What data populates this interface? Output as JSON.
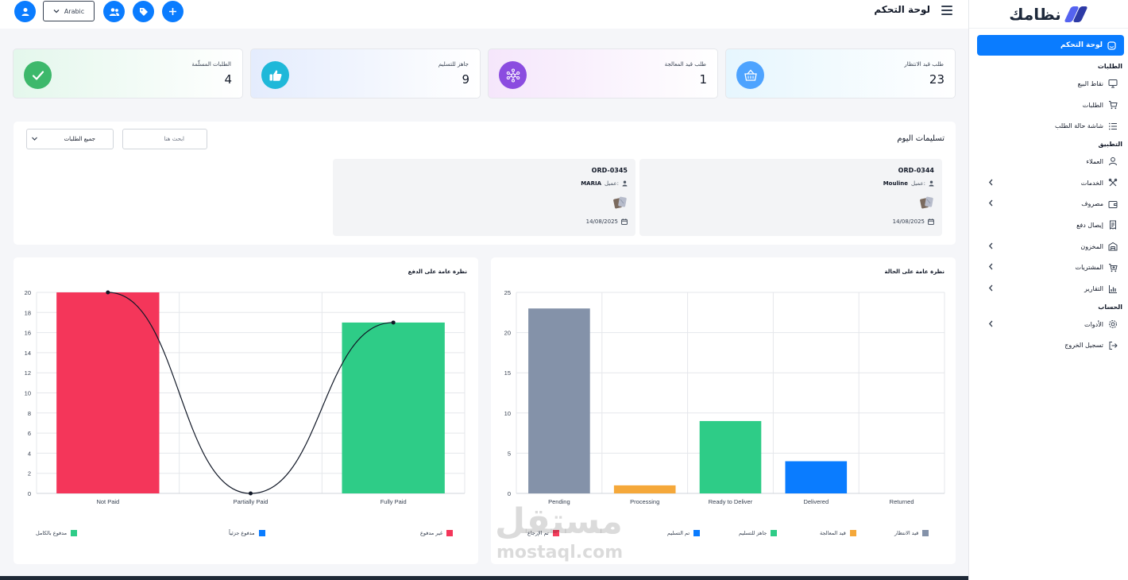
{
  "brand": {
    "name": "نظامك"
  },
  "topbar": {
    "title": "لوحة التحكم",
    "language": "Arabic"
  },
  "sidebar": {
    "active": "لوحة التحكم",
    "sections": [
      {
        "title": "الطلبات",
        "items": [
          {
            "label": "نقاط البيع",
            "icon": "monitor-icon",
            "expandable": false
          },
          {
            "label": "الطلبات",
            "icon": "cart-icon",
            "expandable": false
          },
          {
            "label": "شاشة حالة الطلب",
            "icon": "list-icon",
            "expandable": false
          }
        ]
      },
      {
        "title": "التطبيق",
        "items": [
          {
            "label": "العملاء",
            "icon": "user-icon",
            "expandable": false
          },
          {
            "label": "الخدمات",
            "icon": "tools-icon",
            "expandable": true
          },
          {
            "label": "مصروف",
            "icon": "wallet-icon",
            "expandable": true
          },
          {
            "label": "إيصال دفع",
            "icon": "receipt-icon",
            "expandable": false
          },
          {
            "label": "المخزون",
            "icon": "warehouse-icon",
            "expandable": true
          },
          {
            "label": "المشتريات",
            "icon": "cart-plus-icon",
            "expandable": true
          },
          {
            "label": "التقارير",
            "icon": "chart-icon",
            "expandable": true
          }
        ]
      },
      {
        "title": "الحساب",
        "items": [
          {
            "label": "الأدوات",
            "icon": "gear-icon",
            "expandable": true
          },
          {
            "label": "تسجيل الخروج",
            "icon": "logout-icon",
            "expandable": false
          }
        ]
      }
    ]
  },
  "stats": [
    {
      "label": "طلب قيد الانتظار",
      "value": "23",
      "icon": "basket-icon",
      "color": "#4da3ff"
    },
    {
      "label": "طلب قيد المعالجة",
      "value": "1",
      "icon": "network-icon",
      "color": "#8b4ce0"
    },
    {
      "label": "جاهز للتسليم",
      "value": "9",
      "icon": "thumbs-up-icon",
      "color": "#1fb8d9"
    },
    {
      "label": "الطلبات المسلّمة",
      "value": "4",
      "icon": "check-icon",
      "color": "#3db86b"
    }
  ],
  "deliveries": {
    "title": "تسليمات اليوم",
    "search_placeholder": "ابحث هنا",
    "filter_value": "جميع الطلبات",
    "client_label": "عميل:",
    "orders": [
      {
        "id": "ORD-0344",
        "client": "Mouline",
        "date": "14/08/2025"
      },
      {
        "id": "ORD-0345",
        "client": "MARIA",
        "date": "14/08/2025"
      }
    ]
  },
  "status_chart": {
    "title": "نظرة عامة على الحالة",
    "chart_data": {
      "type": "bar",
      "categories": [
        "Pending",
        "Processing",
        "Ready to Deliver",
        "Delivered",
        "Returned"
      ],
      "values": [
        23,
        1,
        9,
        4,
        0
      ],
      "colors": [
        "#8492a9",
        "#f5a83a",
        "#2ecc87",
        "#0a7cff",
        "#f43f5e"
      ],
      "ylim": [
        0,
        25
      ],
      "yticks": [
        0,
        5,
        10,
        15,
        20,
        25
      ],
      "legend": [
        "قيد الانتظار",
        "قيد المعالجة",
        "جاهز للتسليم",
        "تم التسليم",
        "تم الإرجاع"
      ],
      "legend_position": "bottom",
      "grid": true
    }
  },
  "payment_chart": {
    "title": "نظرة عامة على الدفع",
    "chart_data": {
      "type": "bar",
      "categories": [
        "Not Paid",
        "Partially Paid",
        "Fully Paid"
      ],
      "values": [
        20,
        0,
        17
      ],
      "colors": [
        "#f4365a",
        "#0a7cff",
        "#2ecc87"
      ],
      "ylim": [
        0,
        20
      ],
      "yticks": [
        0,
        2,
        4,
        6,
        8,
        10,
        12,
        14,
        16,
        18,
        20
      ],
      "line_overlay": [
        20,
        0,
        17
      ],
      "legend": [
        "غير مدفوع",
        "مدفوع جزئياً",
        "مدفوع بالكامل"
      ],
      "legend_position": "bottom",
      "grid": true
    }
  },
  "watermark": {
    "ar": "مستقل",
    "en": "mostaql.com"
  }
}
